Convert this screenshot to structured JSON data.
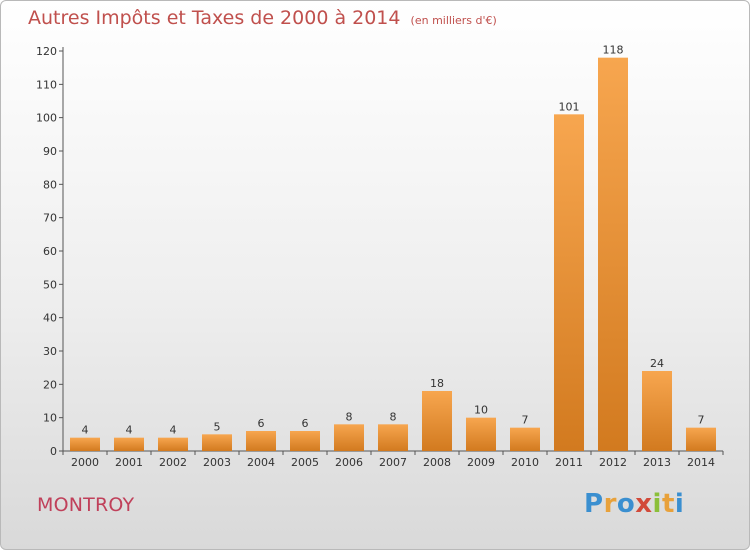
{
  "title": "Autres Impôts et Taxes de 2000 à 2014",
  "subtitle": "(en milliers d'€)",
  "place": "MONTROY",
  "logo": {
    "text": "Proxiti",
    "colors": [
      "#3a8fd0",
      "#e8a13a",
      "#3a8fd0",
      "#d24a3a",
      "#8bbf3a",
      "#e8a13a",
      "#3a8fd0"
    ]
  },
  "colors": {
    "bar_light": "#f7a64f",
    "bar_dark": "#d27a1f",
    "title": "#c0504d",
    "place": "#c0405a"
  },
  "chart_data": {
    "type": "bar",
    "title": "Autres Impôts et Taxes de 2000 à 2014",
    "subtitle": "(en milliers d'€)",
    "categories": [
      "2000",
      "2001",
      "2002",
      "2003",
      "2004",
      "2005",
      "2006",
      "2007",
      "2008",
      "2009",
      "2010",
      "2011",
      "2012",
      "2013",
      "2014"
    ],
    "values": [
      4,
      4,
      4,
      5,
      6,
      6,
      8,
      8,
      18,
      10,
      7,
      101,
      118,
      24,
      7
    ],
    "ylim": [
      0,
      120
    ],
    "yticks": [
      0,
      10,
      20,
      30,
      40,
      50,
      60,
      70,
      80,
      90,
      100,
      110,
      120
    ],
    "grid": false,
    "data_labels": true
  }
}
